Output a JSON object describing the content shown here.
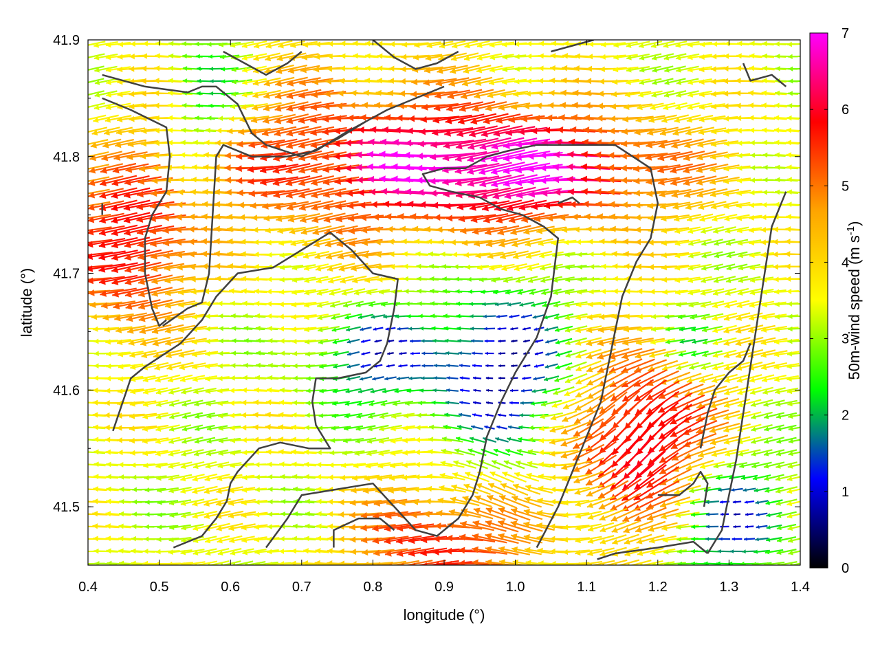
{
  "chart_data": {
    "type": "vector-field",
    "xlabel": "longitude (°)",
    "ylabel": "latitude (°)",
    "xlim": [
      0.4,
      1.4
    ],
    "ylim": [
      41.45,
      41.9
    ],
    "xticks": [
      "0.4",
      "0.5",
      "0.6",
      "0.7",
      "0.8",
      "0.9",
      "1.0",
      "1.1",
      "1.2",
      "1.3",
      "1.4"
    ],
    "yticks": [
      "41.5",
      "41.6",
      "41.7",
      "41.8",
      "41.9"
    ],
    "colorbar": {
      "label_main": "50m-wind speed (m s",
      "label_sup": "-1",
      "label_close": ")",
      "range": [
        0,
        7
      ],
      "ticks": [
        "0",
        "1",
        "2",
        "3",
        "4",
        "5",
        "6",
        "7"
      ],
      "palette": [
        "#000000",
        "#0000ff",
        "#00ff00",
        "#ffff00",
        "#ffa500",
        "#ff0000",
        "#ff00ff"
      ]
    },
    "grid": false,
    "coastline_color": "#404040",
    "field_summary": {
      "dominant_direction": "westward (toward decreasing longitude)",
      "calm_zones_speed_ms": 1,
      "strong_zones_speed_ms": 7
    }
  }
}
